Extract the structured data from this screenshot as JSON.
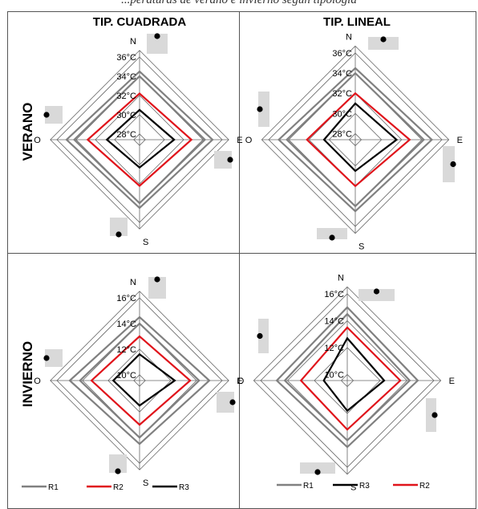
{
  "caption": "...peraturas de verano e invierno según tipología",
  "column_headers": [
    "TIP. CUADRADA",
    "TIP. LINEAL"
  ],
  "row_headers": [
    "VERANO",
    "INVIERNO"
  ],
  "directions": [
    "N",
    "E",
    "S",
    "O"
  ],
  "colors": {
    "R1": "#808080",
    "R2": "#e0141b",
    "R3": "#000000",
    "grid": "#666666",
    "marker": "#d9d9d9"
  },
  "chart_data": [
    {
      "type": "radar",
      "title": "TIP. CUADRADA",
      "row": "VERANO",
      "axes": [
        "N",
        "E",
        "S",
        "O"
      ],
      "ticks": [
        "28°C",
        "30°C",
        "32°C",
        "34°C",
        "36°C"
      ],
      "range": [
        28,
        36
      ],
      "series": [
        {
          "name": "R1",
          "values": [
            34.5,
            35.0,
            34.5,
            35.0
          ]
        },
        {
          "name": "R1",
          "values": [
            34.0,
            34.2,
            34.0,
            34.2
          ]
        },
        {
          "name": "R2",
          "values": [
            32.2,
            32.8,
            32.2,
            32.8
          ]
        },
        {
          "name": "R3",
          "values": [
            30.5,
            31.0,
            30.3,
            30.8
          ]
        }
      ]
    },
    {
      "type": "radar",
      "title": "TIP. LINEAL",
      "row": "VERANO",
      "axes": [
        "N",
        "E",
        "S",
        "O"
      ],
      "ticks": [
        "28°C",
        "30°C",
        "32°C",
        "34°C",
        "36°C"
      ],
      "range": [
        28,
        36
      ],
      "series": [
        {
          "name": "R1",
          "values": [
            34.5,
            35.0,
            34.5,
            35.0
          ]
        },
        {
          "name": "R1",
          "values": [
            34.0,
            34.2,
            34.0,
            34.2
          ]
        },
        {
          "name": "R2",
          "values": [
            32.0,
            32.8,
            32.0,
            32.2
          ]
        },
        {
          "name": "R3",
          "values": [
            31.0,
            31.5,
            30.5,
            30.5
          ]
        }
      ]
    },
    {
      "type": "radar",
      "title": "TIP. CUADRADA",
      "row": "INVIERNO",
      "axes": [
        "N",
        "E",
        "S",
        "O"
      ],
      "ticks": [
        "10°C",
        "12°C",
        "14°C",
        "16°C"
      ],
      "range": [
        10,
        16
      ],
      "series": [
        {
          "name": "R1",
          "values": [
            14.5,
            15.0,
            14.5,
            15.0
          ]
        },
        {
          "name": "R1",
          "values": [
            14.0,
            14.2,
            14.0,
            14.2
          ]
        },
        {
          "name": "R2",
          "values": [
            13.0,
            13.5,
            13.0,
            13.3
          ]
        },
        {
          "name": "R3",
          "values": [
            11.6,
            12.3,
            11.5,
            11.6
          ]
        }
      ]
    },
    {
      "type": "radar",
      "title": "TIP. LINEAL",
      "row": "INVIERNO",
      "axes": [
        "N",
        "E",
        "S",
        "O"
      ],
      "ticks": [
        "10°C",
        "12°C",
        "14°C",
        "16°C"
      ],
      "range": [
        10,
        16
      ],
      "series": [
        {
          "name": "R1",
          "values": [
            15.0,
            14.8,
            14.5,
            14.8
          ]
        },
        {
          "name": "R1",
          "values": [
            14.5,
            14.2,
            14.0,
            14.2
          ]
        },
        {
          "name": "R2",
          "values": [
            13.5,
            13.5,
            13.2,
            13.0
          ]
        },
        {
          "name": "R3",
          "values": [
            12.7,
            12.3,
            11.8,
            11.3
          ]
        }
      ]
    }
  ],
  "legends": [
    [
      "R1",
      "R2",
      "R3"
    ],
    [
      "R1",
      "R3",
      "R2"
    ]
  ]
}
